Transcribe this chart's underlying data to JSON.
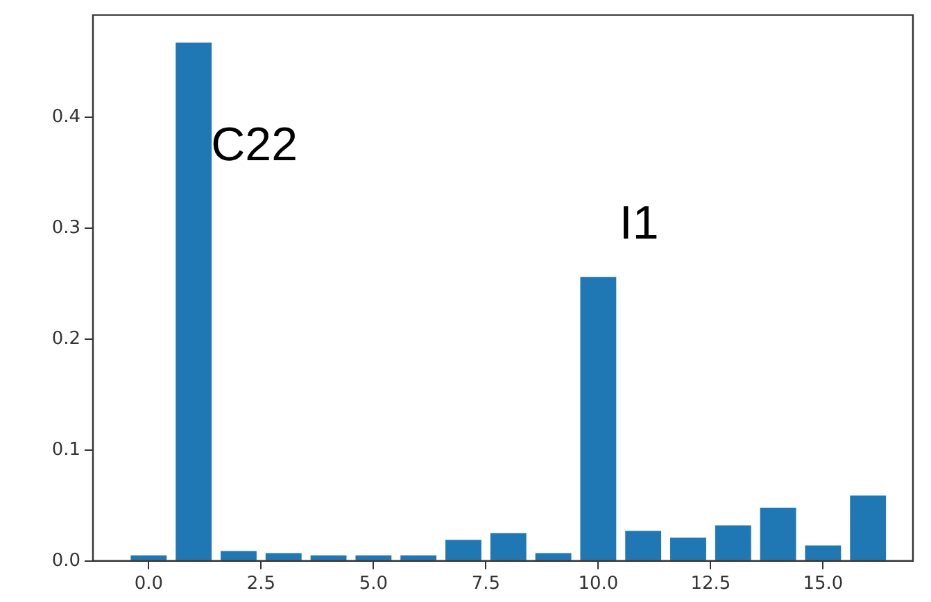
{
  "chart_data": {
    "type": "bar",
    "x": [
      0,
      1,
      2,
      3,
      4,
      5,
      6,
      7,
      8,
      9,
      10,
      11,
      12,
      13,
      14,
      15,
      16
    ],
    "values": [
      0.005,
      0.467,
      0.009,
      0.007,
      0.005,
      0.005,
      0.005,
      0.019,
      0.025,
      0.007,
      0.256,
      0.027,
      0.021,
      0.032,
      0.048,
      0.014,
      0.059
    ],
    "color": "#1f77b4",
    "xlim": [
      -1.24,
      17.0
    ],
    "xticks": [
      {
        "value": 0,
        "label": "0.0"
      },
      {
        "value": 2.5,
        "label": "2.5"
      },
      {
        "value": 5,
        "label": "5.0"
      },
      {
        "value": 7.5,
        "label": "7.5"
      },
      {
        "value": 10,
        "label": "10.0"
      },
      {
        "value": 12.5,
        "label": "12.5"
      },
      {
        "value": 15,
        "label": "15.0"
      }
    ],
    "ylim": [
      0,
      0.492
    ],
    "yticks": [
      {
        "value": 0,
        "label": "0.0"
      },
      {
        "value": 0.1,
        "label": "0.1"
      },
      {
        "value": 0.2,
        "label": "0.2"
      },
      {
        "value": 0.3,
        "label": "0.3"
      },
      {
        "value": 0.4,
        "label": "0.4"
      }
    ],
    "annotations": [
      "C22",
      "I1"
    ]
  }
}
